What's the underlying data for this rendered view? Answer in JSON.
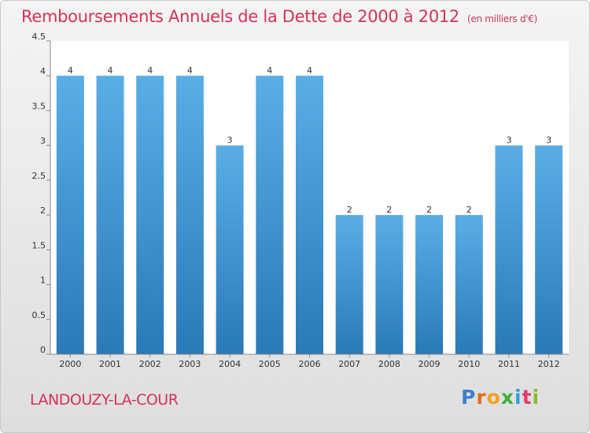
{
  "header": {
    "title": "Remboursements Annuels de la Dette de 2000 à 2012",
    "unit_note": "(en milliers d'€)"
  },
  "footer": {
    "location": "LANDOUZY-LA-COUR",
    "logo_text": "Proxiti"
  },
  "colors": {
    "title": "#d4325a",
    "bar_top": "#5aaee6",
    "bar_bottom": "#2a79b8"
  },
  "chart_data": {
    "type": "bar",
    "title": "Remboursements Annuels de la Dette de 2000 à 2012",
    "xlabel": "",
    "ylabel": "",
    "categories": [
      "2000",
      "2001",
      "2002",
      "2003",
      "2004",
      "2005",
      "2006",
      "2007",
      "2008",
      "2009",
      "2010",
      "2011",
      "2012"
    ],
    "values": [
      4,
      4,
      4,
      4,
      3,
      4,
      4,
      2,
      2,
      2,
      2,
      3,
      3
    ],
    "data_labels": [
      "4",
      "4",
      "4",
      "4",
      "3",
      "4",
      "4",
      "2",
      "2",
      "2",
      "2",
      "3",
      "3"
    ],
    "ylim": [
      0,
      4.5
    ],
    "yticks": [
      0,
      0.5,
      1,
      1.5,
      2,
      2.5,
      3,
      3.5,
      4,
      4.5
    ],
    "ytick_labels": [
      "0",
      "0.5",
      "1",
      "1.5",
      "2",
      "2.5",
      "3",
      "3.5",
      "4",
      "4.5"
    ],
    "grid": false,
    "legend": "none"
  }
}
